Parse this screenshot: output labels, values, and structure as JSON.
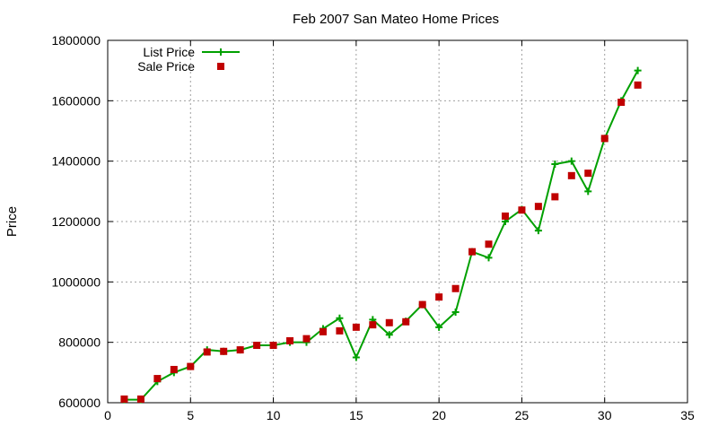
{
  "chart_data": {
    "type": "line",
    "title": "Feb 2007 San Mateo Home Prices",
    "xlabel": "",
    "ylabel": "Price",
    "xlim": [
      0,
      35
    ],
    "ylim": [
      600000,
      1800000
    ],
    "xticks": [
      0,
      5,
      10,
      15,
      20,
      25,
      30,
      35
    ],
    "yticks": [
      600000,
      800000,
      1000000,
      1200000,
      1400000,
      1600000,
      1800000
    ],
    "grid": true,
    "legend_position": "top-left",
    "x": [
      1,
      2,
      3,
      4,
      5,
      6,
      7,
      8,
      9,
      10,
      11,
      12,
      13,
      14,
      15,
      16,
      17,
      18,
      19,
      20,
      21,
      22,
      23,
      24,
      25,
      26,
      27,
      28,
      29,
      30,
      31,
      32
    ],
    "series": [
      {
        "name": "List Price",
        "style": "linespoints",
        "color": "#00a000",
        "values": [
          610000,
          610000,
          670000,
          700000,
          720000,
          775000,
          770000,
          775000,
          790000,
          790000,
          800000,
          800000,
          845000,
          880000,
          750000,
          875000,
          825000,
          870000,
          925000,
          850000,
          900000,
          1100000,
          1080000,
          1200000,
          1240000,
          1170000,
          1390000,
          1400000,
          1300000,
          1475000,
          1600000,
          1700000
        ]
      },
      {
        "name": "Sale Price",
        "style": "points",
        "color": "#c00000",
        "values": [
          612000,
          612000,
          680000,
          710000,
          720000,
          768000,
          770000,
          775000,
          790000,
          790000,
          805000,
          812000,
          835000,
          838000,
          850000,
          858000,
          865000,
          868000,
          925000,
          950000,
          978000,
          1100000,
          1125000,
          1218000,
          1238000,
          1250000,
          1282000,
          1352000,
          1360000,
          1475000,
          1595000,
          1652000
        ]
      }
    ]
  }
}
